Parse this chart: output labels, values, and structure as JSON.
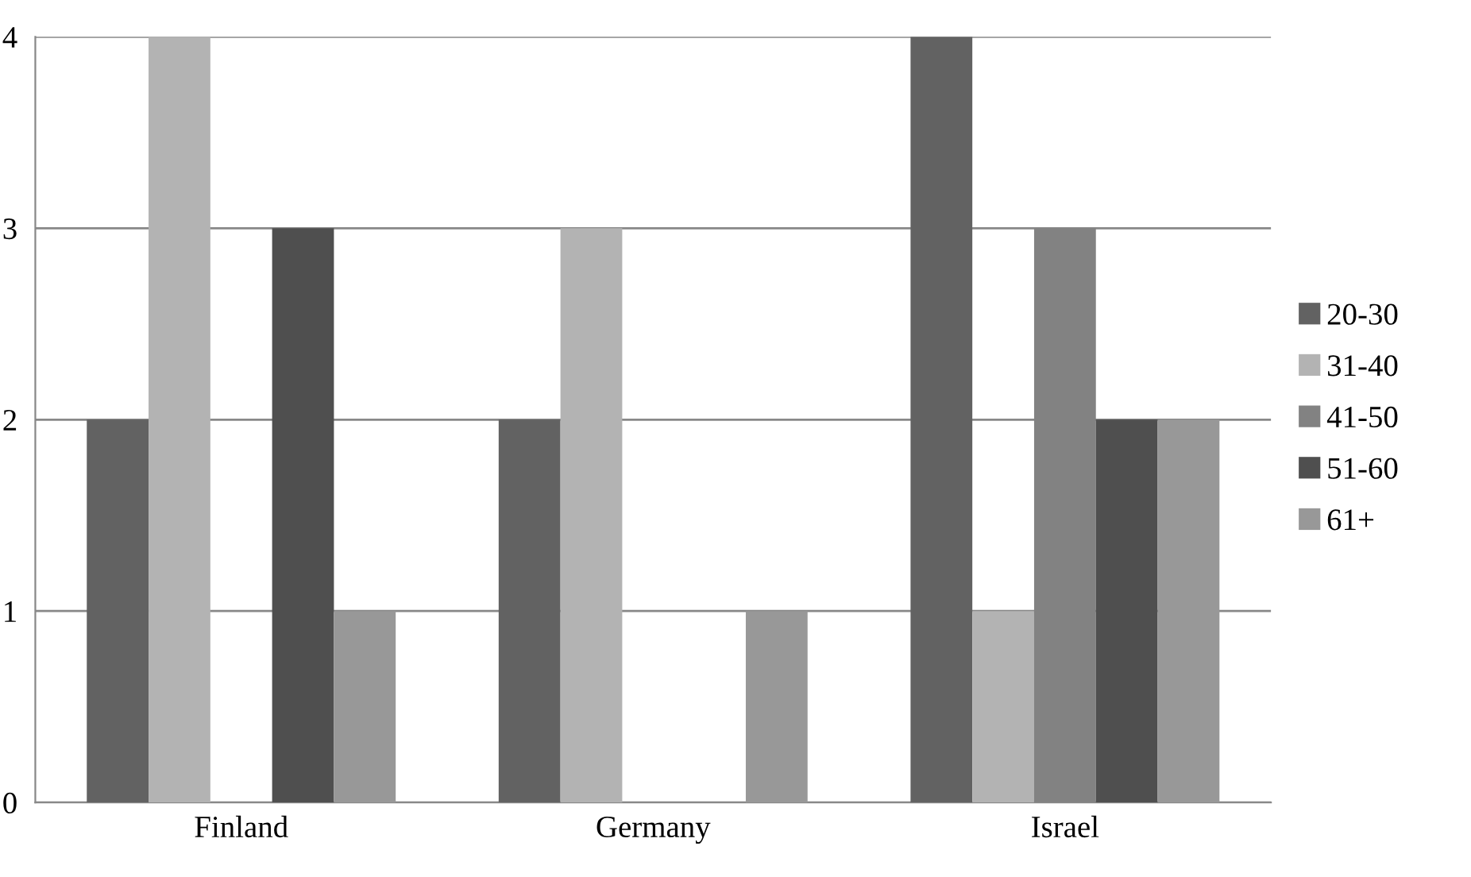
{
  "chart_data": {
    "type": "bar",
    "categories": [
      "Finland",
      "Germany",
      "Israel"
    ],
    "series": [
      {
        "name": "20-30",
        "color": "#626262",
        "values": [
          2,
          2,
          4
        ]
      },
      {
        "name": "31-40",
        "color": "#b3b3b3",
        "values": [
          4,
          3,
          1
        ]
      },
      {
        "name": "41-50",
        "color": "#828282",
        "values": [
          0,
          0,
          3
        ]
      },
      {
        "name": "51-60",
        "color": "#4f4f4f",
        "values": [
          3,
          0,
          2
        ]
      },
      {
        "name": "61+",
        "color": "#989898",
        "values": [
          1,
          1,
          2
        ]
      }
    ],
    "ylim": [
      0,
      4
    ],
    "yticks": [
      0,
      1,
      2,
      3,
      4
    ],
    "grid": "y",
    "legend": "right"
  }
}
